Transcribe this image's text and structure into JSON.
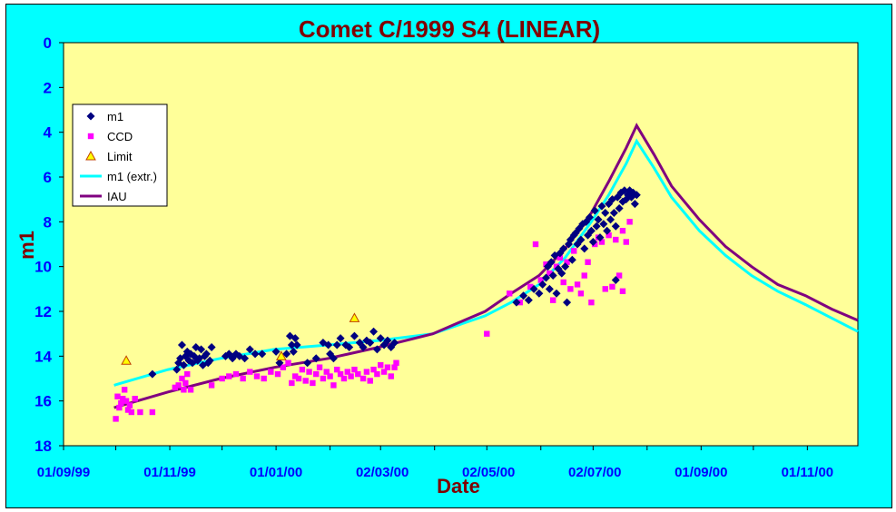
{
  "chart_data": {
    "type": "scatter",
    "title": "Comet C/1999 S4 (LINEAR)",
    "xlabel": "Date",
    "ylabel": "m1",
    "ylim": [
      18,
      0
    ],
    "y_inverted": true,
    "y_ticks": [
      "0",
      "2",
      "4",
      "6",
      "8",
      "10",
      "12",
      "14",
      "16",
      "18"
    ],
    "x_ticks": [
      "01/09/99",
      "01/11/99",
      "01/01/00",
      "02/03/00",
      "02/05/00",
      "02/07/00",
      "01/09/00",
      "01/11/00"
    ],
    "xlim": [
      "1999-09-01",
      "2000-11-30"
    ],
    "grid": false,
    "legend_position": "left",
    "colors": {
      "plot_bg": "#ffff99",
      "frame_bg": "#00ffff",
      "m1": "#000080",
      "ccd": "#ff00ff",
      "limit": "#ffff00",
      "m1_extr": "#00ffff",
      "iau": "#800080"
    },
    "series": [
      {
        "name": "m1",
        "marker": "diamond",
        "points": [
          [
            "1999-10-22",
            14.8
          ],
          [
            "1999-11-05",
            14.6
          ],
          [
            "1999-11-06",
            14.3
          ],
          [
            "1999-11-07",
            14.1
          ],
          [
            "1999-11-08",
            13.5
          ],
          [
            "1999-11-09",
            14.4
          ],
          [
            "1999-11-10",
            14.0
          ],
          [
            "1999-11-11",
            13.8
          ],
          [
            "1999-11-12",
            14.2
          ],
          [
            "1999-11-13",
            13.9
          ],
          [
            "1999-11-14",
            14.3
          ],
          [
            "1999-11-15",
            14.0
          ],
          [
            "1999-11-16",
            13.6
          ],
          [
            "1999-11-17",
            14.2
          ],
          [
            "1999-11-18",
            14.1
          ],
          [
            "1999-11-19",
            13.7
          ],
          [
            "1999-11-20",
            14.4
          ],
          [
            "1999-11-21",
            14.0
          ],
          [
            "1999-11-22",
            13.9
          ],
          [
            "1999-11-23",
            14.3
          ],
          [
            "1999-11-24",
            14.2
          ],
          [
            "1999-11-25",
            13.6
          ],
          [
            "1999-12-03",
            14.0
          ],
          [
            "1999-12-05",
            13.9
          ],
          [
            "1999-12-07",
            14.1
          ],
          [
            "1999-12-09",
            13.9
          ],
          [
            "1999-12-11",
            14.0
          ],
          [
            "1999-12-14",
            14.1
          ],
          [
            "1999-12-17",
            13.7
          ],
          [
            "1999-12-20",
            13.9
          ],
          [
            "1999-12-24",
            13.9
          ],
          [
            "2000-01-01",
            13.8
          ],
          [
            "2000-01-03",
            14.3
          ],
          [
            "2000-01-07",
            13.9
          ],
          [
            "2000-01-09",
            13.1
          ],
          [
            "2000-01-10",
            13.5
          ],
          [
            "2000-01-11",
            13.8
          ],
          [
            "2000-01-12",
            13.2
          ],
          [
            "2000-01-13",
            13.5
          ],
          [
            "2000-01-19",
            14.3
          ],
          [
            "2000-01-24",
            14.1
          ],
          [
            "2000-01-28",
            13.4
          ],
          [
            "2000-01-31",
            13.5
          ],
          [
            "2000-02-01",
            13.9
          ],
          [
            "2000-02-03",
            14.1
          ],
          [
            "2000-02-05",
            13.5
          ],
          [
            "2000-02-07",
            13.2
          ],
          [
            "2000-02-10",
            13.5
          ],
          [
            "2000-02-12",
            13.6
          ],
          [
            "2000-02-15",
            13.1
          ],
          [
            "2000-02-18",
            13.4
          ],
          [
            "2000-02-20",
            13.6
          ],
          [
            "2000-02-22",
            13.3
          ],
          [
            "2000-02-24",
            13.4
          ],
          [
            "2000-02-26",
            12.9
          ],
          [
            "2000-02-28",
            13.7
          ],
          [
            "2000-03-01",
            13.2
          ],
          [
            "2000-03-03",
            13.5
          ],
          [
            "2000-03-05",
            13.3
          ],
          [
            "2000-03-07",
            13.6
          ],
          [
            "2000-03-09",
            13.4
          ],
          [
            "2000-05-18",
            11.6
          ],
          [
            "2000-05-22",
            11.3
          ],
          [
            "2000-05-25",
            11.5
          ],
          [
            "2000-05-28",
            11.0
          ],
          [
            "2000-05-31",
            11.2
          ],
          [
            "2000-06-02",
            10.8
          ],
          [
            "2000-06-04",
            10.5
          ],
          [
            "2000-06-05",
            10.0
          ],
          [
            "2000-06-06",
            11.0
          ],
          [
            "2000-06-07",
            9.8
          ],
          [
            "2000-06-08",
            10.4
          ],
          [
            "2000-06-09",
            9.5
          ],
          [
            "2000-06-10",
            11.2
          ],
          [
            "2000-06-11",
            10.1
          ],
          [
            "2000-06-12",
            9.4
          ],
          [
            "2000-06-13",
            10.3
          ],
          [
            "2000-06-14",
            9.2
          ],
          [
            "2000-06-15",
            10.0
          ],
          [
            "2000-06-16",
            11.6
          ],
          [
            "2000-06-17",
            9.0
          ],
          [
            "2000-06-18",
            8.8
          ],
          [
            "2000-06-19",
            9.7
          ],
          [
            "2000-06-20",
            8.6
          ],
          [
            "2000-06-21",
            8.5
          ],
          [
            "2000-06-22",
            9.0
          ],
          [
            "2000-06-23",
            8.3
          ],
          [
            "2000-06-24",
            8.8
          ],
          [
            "2000-06-25",
            8.1
          ],
          [
            "2000-06-26",
            9.2
          ],
          [
            "2000-06-27",
            8.0
          ],
          [
            "2000-06-28",
            8.6
          ],
          [
            "2000-06-29",
            7.8
          ],
          [
            "2000-06-30",
            8.4
          ],
          [
            "2000-07-01",
            8.9
          ],
          [
            "2000-07-02",
            7.5
          ],
          [
            "2000-07-03",
            8.2
          ],
          [
            "2000-07-04",
            7.9
          ],
          [
            "2000-07-05",
            8.7
          ],
          [
            "2000-07-06",
            7.3
          ],
          [
            "2000-07-07",
            8.1
          ],
          [
            "2000-07-08",
            7.6
          ],
          [
            "2000-07-09",
            8.4
          ],
          [
            "2000-07-10",
            7.2
          ],
          [
            "2000-07-11",
            7.9
          ],
          [
            "2000-07-12",
            7.0
          ],
          [
            "2000-07-13",
            7.6
          ],
          [
            "2000-07-14",
            8.2
          ],
          [
            "2000-07-15",
            6.9
          ],
          [
            "2000-07-16",
            7.4
          ],
          [
            "2000-07-17",
            6.7
          ],
          [
            "2000-07-18",
            7.1
          ],
          [
            "2000-07-19",
            6.6
          ],
          [
            "2000-07-20",
            7.0
          ],
          [
            "2000-07-21",
            6.8
          ],
          [
            "2000-07-22",
            6.6
          ],
          [
            "2000-07-23",
            6.9
          ],
          [
            "2000-07-24",
            6.7
          ],
          [
            "2000-07-25",
            7.2
          ],
          [
            "2000-07-26",
            6.8
          ],
          [
            "2000-07-14",
            10.6
          ]
        ]
      },
      {
        "name": "CCD",
        "marker": "square",
        "points": [
          [
            "1999-10-01",
            16.8
          ],
          [
            "1999-10-02",
            15.8
          ],
          [
            "1999-10-03",
            16.3
          ],
          [
            "1999-10-04",
            16.1
          ],
          [
            "1999-10-05",
            15.9
          ],
          [
            "1999-10-06",
            15.5
          ],
          [
            "1999-10-07",
            16.0
          ],
          [
            "1999-10-08",
            16.4
          ],
          [
            "1999-10-09",
            16.2
          ],
          [
            "1999-10-10",
            16.5
          ],
          [
            "1999-10-12",
            15.9
          ],
          [
            "1999-10-15",
            16.5
          ],
          [
            "1999-10-22",
            16.5
          ],
          [
            "1999-11-04",
            15.4
          ],
          [
            "1999-11-06",
            15.3
          ],
          [
            "1999-11-08",
            15.0
          ],
          [
            "1999-11-09",
            15.5
          ],
          [
            "1999-11-10",
            15.2
          ],
          [
            "1999-11-11",
            14.8
          ],
          [
            "1999-11-13",
            15.5
          ],
          [
            "1999-11-25",
            15.3
          ],
          [
            "1999-12-01",
            15.0
          ],
          [
            "1999-12-05",
            14.9
          ],
          [
            "1999-12-09",
            14.8
          ],
          [
            "1999-12-13",
            15.0
          ],
          [
            "1999-12-17",
            14.7
          ],
          [
            "1999-12-21",
            14.9
          ],
          [
            "1999-12-25",
            15.0
          ],
          [
            "1999-12-29",
            14.7
          ],
          [
            "2000-01-02",
            14.8
          ],
          [
            "2000-01-05",
            14.5
          ],
          [
            "2000-01-08",
            14.3
          ],
          [
            "2000-01-10",
            15.2
          ],
          [
            "2000-01-12",
            14.9
          ],
          [
            "2000-01-14",
            15.0
          ],
          [
            "2000-01-16",
            14.6
          ],
          [
            "2000-01-18",
            15.1
          ],
          [
            "2000-01-20",
            14.7
          ],
          [
            "2000-01-22",
            15.2
          ],
          [
            "2000-01-24",
            14.8
          ],
          [
            "2000-01-26",
            14.5
          ],
          [
            "2000-01-28",
            15.0
          ],
          [
            "2000-01-30",
            14.7
          ],
          [
            "2000-02-01",
            14.9
          ],
          [
            "2000-02-03",
            15.3
          ],
          [
            "2000-02-05",
            14.6
          ],
          [
            "2000-02-07",
            14.8
          ],
          [
            "2000-02-09",
            15.0
          ],
          [
            "2000-02-11",
            14.7
          ],
          [
            "2000-02-13",
            14.9
          ],
          [
            "2000-02-15",
            14.6
          ],
          [
            "2000-02-17",
            14.8
          ],
          [
            "2000-02-20",
            15.0
          ],
          [
            "2000-02-22",
            14.7
          ],
          [
            "2000-02-24",
            15.1
          ],
          [
            "2000-02-26",
            14.6
          ],
          [
            "2000-02-28",
            14.8
          ],
          [
            "2000-03-01",
            14.4
          ],
          [
            "2000-03-03",
            14.7
          ],
          [
            "2000-03-05",
            14.5
          ],
          [
            "2000-03-07",
            14.9
          ],
          [
            "2000-03-09",
            14.5
          ],
          [
            "2000-03-10",
            14.3
          ],
          [
            "2000-05-01",
            13.0
          ],
          [
            "2000-05-14",
            11.2
          ],
          [
            "2000-05-20",
            11.6
          ],
          [
            "2000-05-26",
            10.9
          ],
          [
            "2000-05-29",
            9.0
          ],
          [
            "2000-06-01",
            10.6
          ],
          [
            "2000-06-04",
            9.9
          ],
          [
            "2000-06-06",
            10.3
          ],
          [
            "2000-06-08",
            11.5
          ],
          [
            "2000-06-10",
            10.0
          ],
          [
            "2000-06-12",
            9.6
          ],
          [
            "2000-06-14",
            10.7
          ],
          [
            "2000-06-16",
            9.8
          ],
          [
            "2000-06-18",
            11.0
          ],
          [
            "2000-06-20",
            9.3
          ],
          [
            "2000-06-22",
            10.8
          ],
          [
            "2000-06-24",
            11.2
          ],
          [
            "2000-06-26",
            10.4
          ],
          [
            "2000-06-28",
            9.8
          ],
          [
            "2000-06-30",
            11.6
          ],
          [
            "2000-07-02",
            9.0
          ],
          [
            "2000-07-04",
            8.7
          ],
          [
            "2000-07-06",
            8.9
          ],
          [
            "2000-07-08",
            11.0
          ],
          [
            "2000-07-10",
            8.6
          ],
          [
            "2000-07-12",
            10.9
          ],
          [
            "2000-07-14",
            8.8
          ],
          [
            "2000-07-16",
            10.4
          ],
          [
            "2000-07-18",
            8.4
          ],
          [
            "2000-07-20",
            8.9
          ],
          [
            "2000-07-22",
            8.0
          ],
          [
            "2000-07-18",
            11.1
          ]
        ]
      },
      {
        "name": "Limit",
        "marker": "triangle",
        "points": [
          [
            "1999-10-07",
            14.2
          ],
          [
            "2000-01-04",
            14.0
          ],
          [
            "2000-02-15",
            12.3
          ]
        ]
      },
      {
        "name": "m1 (extr.)",
        "marker": "line",
        "points": [
          [
            "1999-09-30",
            15.3
          ],
          [
            "1999-10-31",
            14.6
          ],
          [
            "1999-11-30",
            14.1
          ],
          [
            "1999-12-31",
            13.7
          ],
          [
            "2000-01-31",
            13.5
          ],
          [
            "2000-02-29",
            13.3
          ],
          [
            "2000-03-31",
            13.0
          ],
          [
            "2000-04-15",
            12.6
          ],
          [
            "2000-04-30",
            12.2
          ],
          [
            "2000-05-15",
            11.6
          ],
          [
            "2000-05-31",
            10.8
          ],
          [
            "2000-06-15",
            9.6
          ],
          [
            "2000-06-30",
            8.0
          ],
          [
            "2000-07-10",
            6.8
          ],
          [
            "2000-07-20",
            5.4
          ],
          [
            "2000-07-26",
            4.4
          ],
          [
            "2000-08-05",
            5.6
          ],
          [
            "2000-08-15",
            6.9
          ],
          [
            "2000-08-31",
            8.4
          ],
          [
            "2000-09-15",
            9.5
          ],
          [
            "2000-09-30",
            10.4
          ],
          [
            "2000-10-15",
            11.1
          ],
          [
            "2000-10-31",
            11.7
          ],
          [
            "2000-11-15",
            12.3
          ],
          [
            "2000-11-30",
            12.9
          ]
        ]
      },
      {
        "name": "IAU",
        "marker": "line",
        "points": [
          [
            "1999-09-30",
            16.3
          ],
          [
            "1999-10-31",
            15.6
          ],
          [
            "1999-11-30",
            15.0
          ],
          [
            "1999-12-31",
            14.5
          ],
          [
            "2000-01-31",
            14.1
          ],
          [
            "2000-02-29",
            13.6
          ],
          [
            "2000-03-31",
            13.0
          ],
          [
            "2000-04-15",
            12.5
          ],
          [
            "2000-04-30",
            12.0
          ],
          [
            "2000-05-15",
            11.2
          ],
          [
            "2000-05-31",
            10.4
          ],
          [
            "2000-06-15",
            9.2
          ],
          [
            "2000-06-30",
            7.6
          ],
          [
            "2000-07-10",
            6.2
          ],
          [
            "2000-07-20",
            4.7
          ],
          [
            "2000-07-26",
            3.7
          ],
          [
            "2000-08-05",
            5.0
          ],
          [
            "2000-08-15",
            6.4
          ],
          [
            "2000-08-31",
            7.9
          ],
          [
            "2000-09-15",
            9.1
          ],
          [
            "2000-09-30",
            10.0
          ],
          [
            "2000-10-15",
            10.8
          ],
          [
            "2000-10-31",
            11.3
          ],
          [
            "2000-11-15",
            11.9
          ],
          [
            "2000-11-30",
            12.4
          ]
        ]
      }
    ],
    "legend": [
      "m1",
      "CCD",
      "Limit",
      "m1 (extr.)",
      "IAU"
    ]
  }
}
